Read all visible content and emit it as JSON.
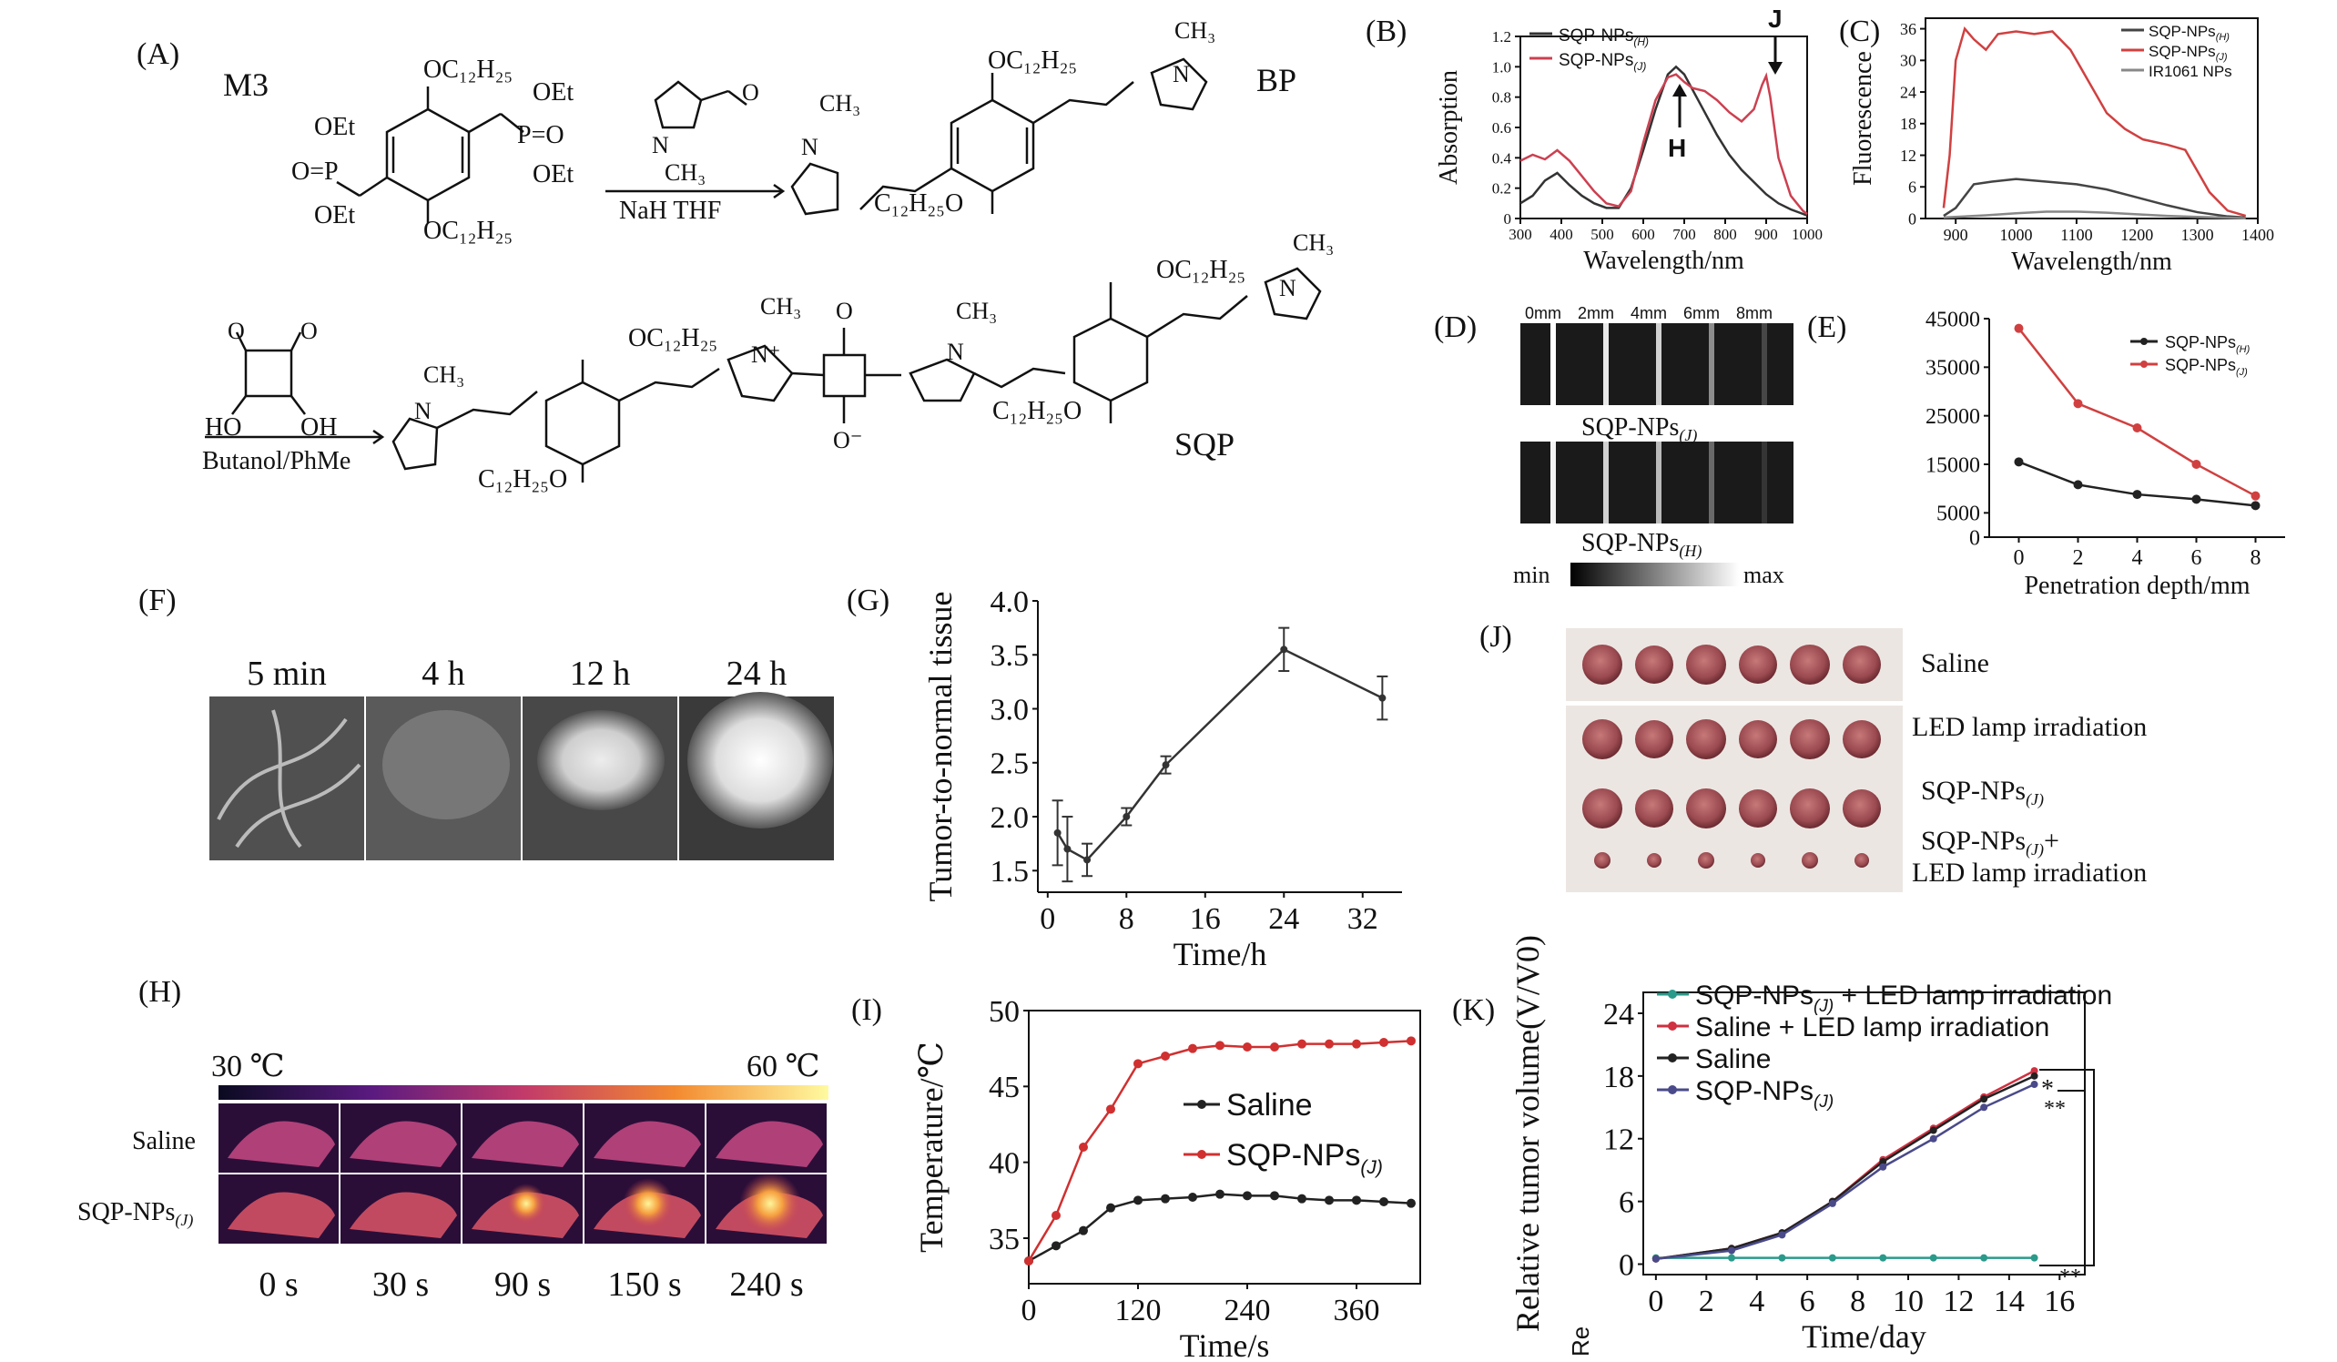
{
  "panels": {
    "A": "(A)",
    "B": "(B)",
    "C": "(C)",
    "D": "(D)",
    "E": "(E)",
    "F": "(F)",
    "G": "(G)",
    "H": "(H)",
    "I": "(I)",
    "J": "(J)",
    "K": "(K)"
  },
  "scheme": {
    "m3": "M3",
    "bp": "BP",
    "sqp": "SQP",
    "oc12": "OC₁₂H₂₅",
    "c12o": "C₁₂H₂₅O",
    "oet": "OEt",
    "ch3": "CH₃",
    "n": "N",
    "np": "N⁺",
    "o": "O",
    "om": "O⁻",
    "p_eq_o": "O=P",
    "p_o_eq": "P=O",
    "ho": "HO",
    "oh": "OH",
    "cond1_top": "",
    "cond1_bot": "NaH  THF",
    "cond2_bot": "Butanol/PhMe",
    "h_label": "H",
    "j_label": "J"
  },
  "chart_data": [
    {
      "panel": "B",
      "type": "line",
      "xlabel": "Wavelength/nm",
      "ylabel": "Absorption",
      "xlim": [
        300,
        1000
      ],
      "ylim": [
        0,
        1.2
      ],
      "xticks": [
        300,
        400,
        500,
        600,
        700,
        800,
        900,
        1000
      ],
      "yticks": [
        0,
        0.2,
        0.4,
        0.6,
        0.8,
        1.0,
        1.2
      ],
      "ytick_labels": [
        "0",
        "0.2",
        "0.4",
        "0.6",
        "0.8",
        "1.0",
        "1.2"
      ],
      "series": [
        {
          "name": "SQP-NPs(H)",
          "color": "#333333",
          "x": [
            300,
            330,
            360,
            390,
            420,
            450,
            480,
            510,
            540,
            570,
            600,
            630,
            660,
            680,
            700,
            720,
            750,
            780,
            810,
            840,
            870,
            900,
            930,
            960,
            990,
            1000
          ],
          "y": [
            0.1,
            0.15,
            0.25,
            0.3,
            0.22,
            0.15,
            0.1,
            0.07,
            0.07,
            0.2,
            0.45,
            0.72,
            0.95,
            1.0,
            0.95,
            0.85,
            0.7,
            0.55,
            0.42,
            0.32,
            0.24,
            0.16,
            0.1,
            0.06,
            0.03,
            0.02
          ]
        },
        {
          "name": "SQP-NPs(J)",
          "color": "#cc4050",
          "x": [
            300,
            330,
            360,
            390,
            420,
            450,
            480,
            510,
            540,
            570,
            600,
            630,
            660,
            680,
            700,
            720,
            750,
            780,
            810,
            840,
            870,
            890,
            900,
            910,
            930,
            960,
            990,
            1000
          ],
          "y": [
            0.38,
            0.42,
            0.39,
            0.45,
            0.38,
            0.28,
            0.18,
            0.1,
            0.08,
            0.18,
            0.5,
            0.78,
            0.93,
            0.95,
            0.9,
            0.86,
            0.84,
            0.78,
            0.7,
            0.64,
            0.72,
            0.88,
            0.94,
            0.8,
            0.4,
            0.15,
            0.05,
            0.03
          ]
        }
      ]
    },
    {
      "panel": "C",
      "type": "line",
      "xlabel": "Wavelength/nm",
      "ylabel": "Fluorescence",
      "xlim": [
        850,
        1400
      ],
      "ylim": [
        0,
        38
      ],
      "xticks": [
        900,
        1000,
        1100,
        1200,
        1300,
        1400
      ],
      "yticks": [
        0,
        6,
        12,
        18,
        24,
        30,
        36
      ],
      "series": [
        {
          "name": "SQP-NPs(H)",
          "color": "#444444",
          "x": [
            880,
            900,
            930,
            960,
            1000,
            1050,
            1100,
            1150,
            1200,
            1250,
            1300,
            1350,
            1380
          ],
          "y": [
            0.5,
            2,
            6.5,
            7,
            7.5,
            7,
            6.5,
            5.5,
            4,
            2.5,
            1.2,
            0.4,
            0.2
          ]
        },
        {
          "name": "SQP-NPs(J)",
          "color": "#d04040",
          "x": [
            880,
            890,
            900,
            915,
            930,
            950,
            970,
            1000,
            1030,
            1060,
            1090,
            1120,
            1150,
            1180,
            1210,
            1250,
            1280,
            1300,
            1320,
            1350,
            1380
          ],
          "y": [
            2,
            12,
            30,
            36,
            34,
            32,
            35,
            35.5,
            35,
            35.5,
            32,
            26,
            20,
            17,
            15,
            14,
            13,
            9,
            5,
            1.5,
            0.5
          ]
        },
        {
          "name": "IR1061 NPs",
          "color": "#888888",
          "x": [
            880,
            950,
            1000,
            1050,
            1100,
            1150,
            1200,
            1250,
            1300,
            1350,
            1380
          ],
          "y": [
            0.2,
            0.6,
            1,
            1.3,
            1.3,
            1.1,
            0.8,
            0.5,
            0.3,
            0.15,
            0.05
          ]
        }
      ]
    },
    {
      "panel": "E",
      "type": "line",
      "xlabel": "Penetration depth/mm",
      "ylabel": "",
      "xlim": [
        -1,
        9
      ],
      "ylim": [
        0,
        45000
      ],
      "xticks": [
        0,
        2,
        4,
        6,
        8
      ],
      "yticks": [
        0,
        5000,
        15000,
        25000,
        35000,
        45000
      ],
      "series": [
        {
          "name": "SQP-NPs(H)",
          "color": "#222222",
          "x": [
            0,
            2,
            4,
            6,
            8
          ],
          "y": [
            15500,
            10800,
            8800,
            7800,
            6500
          ]
        },
        {
          "name": "SQP-NPs(J)",
          "color": "#d04040",
          "x": [
            0,
            2,
            4,
            6,
            8
          ],
          "y": [
            43000,
            27500,
            22500,
            15000,
            8500
          ]
        }
      ]
    },
    {
      "panel": "G",
      "type": "line",
      "xlabel": "Time/h",
      "ylabel": "Tumor-to-normal tissue",
      "xlim": [
        -1,
        36
      ],
      "ylim": [
        1.3,
        4.0
      ],
      "xticks": [
        0,
        8,
        16,
        24,
        32
      ],
      "yticks": [
        1.5,
        2.0,
        2.5,
        3.0,
        3.5,
        4.0
      ],
      "ytick_labels": [
        "1.5",
        "2.0",
        "2.5",
        "3.0",
        "3.5",
        "4.0"
      ],
      "series": [
        {
          "name": "",
          "color": "#333333",
          "x": [
            1,
            2,
            4,
            8,
            12,
            24,
            34
          ],
          "y": [
            1.85,
            1.7,
            1.6,
            2.0,
            2.48,
            3.55,
            3.1
          ],
          "err": [
            0.3,
            0.3,
            0.15,
            0.08,
            0.08,
            0.2,
            0.2
          ]
        }
      ]
    },
    {
      "panel": "I",
      "type": "line",
      "xlabel": "Time/s",
      "ylabel": "Temperature/℃",
      "xlim": [
        0,
        430
      ],
      "ylim": [
        32,
        50
      ],
      "xticks": [
        0,
        120,
        240,
        360
      ],
      "yticks": [
        35,
        40,
        45,
        50
      ],
      "series": [
        {
          "name": "Saline",
          "color": "#222222",
          "x": [
            0,
            30,
            60,
            90,
            120,
            150,
            180,
            210,
            240,
            270,
            300,
            330,
            360,
            390,
            420
          ],
          "y": [
            33.5,
            34.5,
            35.5,
            37,
            37.5,
            37.6,
            37.7,
            37.9,
            37.8,
            37.8,
            37.6,
            37.5,
            37.5,
            37.4,
            37.3
          ]
        },
        {
          "name": "SQP-NPs(J)",
          "color": "#d03030",
          "x": [
            0,
            30,
            60,
            90,
            120,
            150,
            180,
            210,
            240,
            270,
            300,
            330,
            360,
            390,
            420
          ],
          "y": [
            33.5,
            36.5,
            41,
            43.5,
            46.5,
            47,
            47.5,
            47.7,
            47.6,
            47.6,
            47.8,
            47.8,
            47.8,
            47.9,
            48
          ]
        }
      ]
    },
    {
      "panel": "K",
      "type": "line",
      "xlabel": "Time/day",
      "ylabel": "Relative tumor volume(V/V0)",
      "xlim": [
        -0.5,
        17
      ],
      "ylim": [
        -1,
        26
      ],
      "xticks": [
        0,
        2,
        4,
        6,
        8,
        10,
        12,
        14,
        16
      ],
      "yticks": [
        0,
        6,
        12,
        18,
        24
      ],
      "series": [
        {
          "name": "SQP-NPs(J) + LED lamp irradiation",
          "color": "#2a9a8a",
          "x": [
            0,
            3,
            5,
            7,
            9,
            11,
            13,
            15
          ],
          "y": [
            0.6,
            0.6,
            0.6,
            0.6,
            0.6,
            0.6,
            0.6,
            0.6
          ]
        },
        {
          "name": "Saline + LED lamp irradiation",
          "color": "#d03040",
          "x": [
            0,
            3,
            5,
            7,
            9,
            11,
            13,
            15
          ],
          "y": [
            0.5,
            1.5,
            3,
            6,
            10,
            13,
            16,
            18.5
          ]
        },
        {
          "name": "Saline",
          "color": "#222222",
          "x": [
            0,
            3,
            5,
            7,
            9,
            11,
            13,
            15
          ],
          "y": [
            0.5,
            1.5,
            3,
            6,
            9.8,
            12.8,
            15.8,
            18
          ]
        },
        {
          "name": "SQP-NPs(J)",
          "color": "#4a4a8a",
          "x": [
            0,
            3,
            5,
            7,
            9,
            11,
            13,
            15
          ],
          "y": [
            0.5,
            1.3,
            2.8,
            5.8,
            9.3,
            12,
            15,
            17.2
          ]
        }
      ]
    }
  ],
  "legendB": [
    {
      "name": "SQP-NPs",
      "sub": "(H)"
    },
    {
      "name": "SQP-NPs",
      "sub": "(J)"
    }
  ],
  "legendC": [
    {
      "name": "SQP-NPs",
      "sub": "(H)"
    },
    {
      "name": "SQP-NPs",
      "sub": "(J)"
    },
    {
      "name": "IR1061 NPs",
      "sub": ""
    }
  ],
  "legendE": [
    {
      "name": "SQP-NPs",
      "sub": "(H)"
    },
    {
      "name": "SQP-NPs",
      "sub": "(J)"
    }
  ],
  "legendI": [
    {
      "name": "Saline",
      "sub": ""
    },
    {
      "name": "SQP-NPs",
      "sub": "(J)"
    }
  ],
  "legendK": [
    {
      "name": "SQP-NPs",
      "sub": "(J)",
      "tail": " + LED lamp irradiation"
    },
    {
      "name": "Saline + LED lamp irradiation",
      "sub": "",
      "tail": ""
    },
    {
      "name": "Saline",
      "sub": "",
      "tail": ""
    },
    {
      "name": "SQP-NPs",
      "sub": "(J)",
      "tail": ""
    }
  ],
  "K_extra": {
    "sig1": "*",
    "sig2": "**",
    "sig3": "**",
    "re": "Re"
  },
  "D": {
    "depths": [
      "0mm",
      "2mm",
      "4mm",
      "6mm",
      "8mm"
    ],
    "label1": "SQP-NPs",
    "sub1": "(J)",
    "label2": "SQP-NPs",
    "sub2": "(H)",
    "min": "min",
    "max": "max"
  },
  "F": {
    "times": [
      "5 min",
      "4 h",
      "12 h",
      "24 h"
    ]
  },
  "H": {
    "tmin": "30 ℃",
    "tmax": "60 ℃",
    "row1": "Saline",
    "row2": "SQP-NPs",
    "row2sub": "(J)",
    "times": [
      "0 s",
      "30 s",
      "90 s",
      "150 s",
      "240 s"
    ]
  },
  "J": {
    "rows": [
      "Saline",
      "LED lamp irradiation",
      "SQP-NPs(J)",
      "SQP-NPs(J)+",
      "LED lamp irradiation"
    ]
  }
}
